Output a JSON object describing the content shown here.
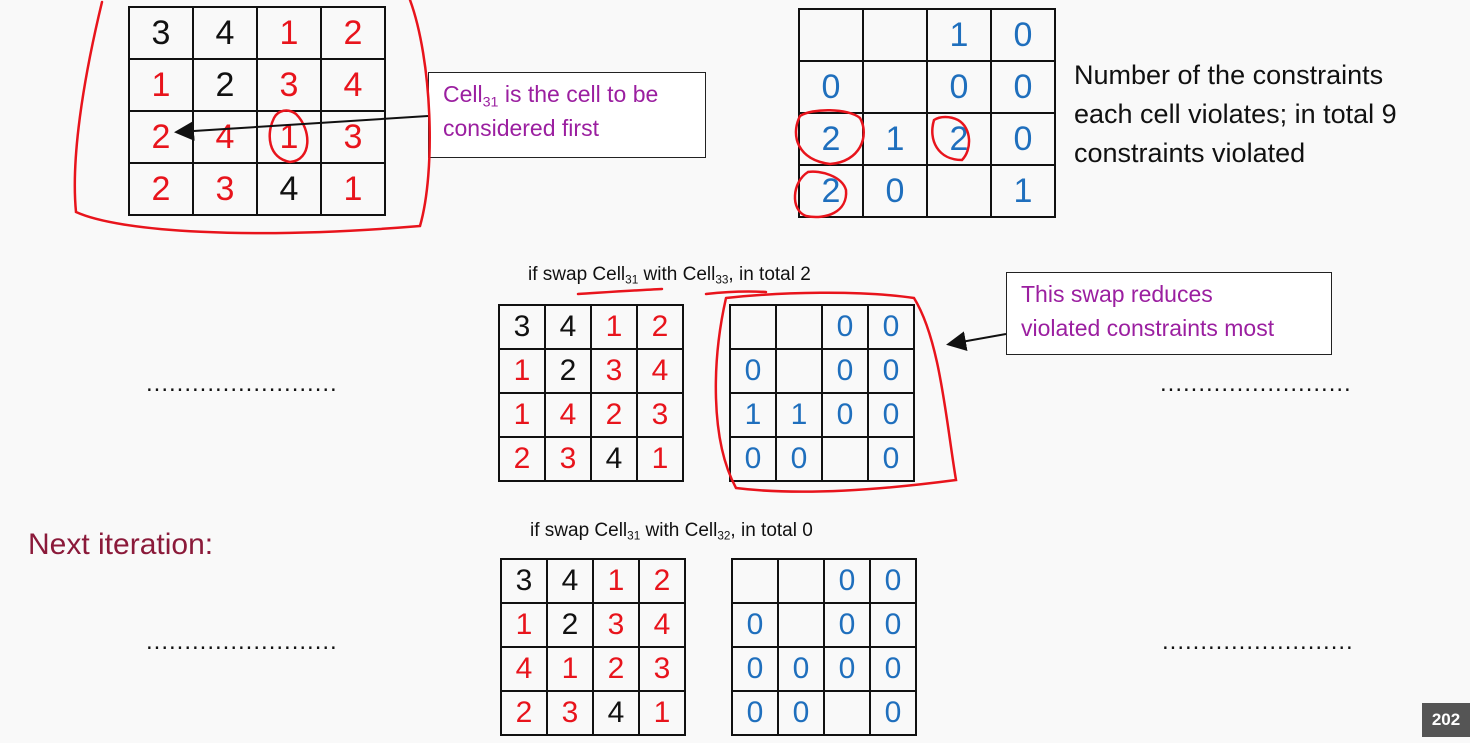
{
  "grid_top_left": {
    "rows": [
      [
        {
          "v": "3",
          "c": "blk"
        },
        {
          "v": "4",
          "c": "blk"
        },
        {
          "v": "1",
          "c": "red"
        },
        {
          "v": "2",
          "c": "red"
        }
      ],
      [
        {
          "v": "1",
          "c": "red"
        },
        {
          "v": "2",
          "c": "blk"
        },
        {
          "v": "3",
          "c": "red"
        },
        {
          "v": "4",
          "c": "red"
        }
      ],
      [
        {
          "v": "2",
          "c": "red"
        },
        {
          "v": "4",
          "c": "red"
        },
        {
          "v": "1",
          "c": "red"
        },
        {
          "v": "3",
          "c": "red"
        }
      ],
      [
        {
          "v": "2",
          "c": "red"
        },
        {
          "v": "3",
          "c": "red"
        },
        {
          "v": "4",
          "c": "blk"
        },
        {
          "v": "1",
          "c": "red"
        }
      ]
    ]
  },
  "grid_top_right": {
    "rows": [
      [
        {
          "v": "",
          "c": "blu"
        },
        {
          "v": "",
          "c": "blu"
        },
        {
          "v": "1",
          "c": "blu"
        },
        {
          "v": "0",
          "c": "blu"
        }
      ],
      [
        {
          "v": "0",
          "c": "blu"
        },
        {
          "v": "",
          "c": "blu"
        },
        {
          "v": "0",
          "c": "blu"
        },
        {
          "v": "0",
          "c": "blu"
        }
      ],
      [
        {
          "v": "2",
          "c": "blu"
        },
        {
          "v": "1",
          "c": "blu"
        },
        {
          "v": "2",
          "c": "blu"
        },
        {
          "v": "0",
          "c": "blu"
        }
      ],
      [
        {
          "v": "2",
          "c": "blu"
        },
        {
          "v": "0",
          "c": "blu"
        },
        {
          "v": "",
          "c": "blu"
        },
        {
          "v": "1",
          "c": "blu"
        }
      ]
    ]
  },
  "grid_mid_left": {
    "rows": [
      [
        {
          "v": "3",
          "c": "blk"
        },
        {
          "v": "4",
          "c": "blk"
        },
        {
          "v": "1",
          "c": "red"
        },
        {
          "v": "2",
          "c": "red"
        }
      ],
      [
        {
          "v": "1",
          "c": "red"
        },
        {
          "v": "2",
          "c": "blk"
        },
        {
          "v": "3",
          "c": "red"
        },
        {
          "v": "4",
          "c": "red"
        }
      ],
      [
        {
          "v": "1",
          "c": "red"
        },
        {
          "v": "4",
          "c": "red"
        },
        {
          "v": "2",
          "c": "red"
        },
        {
          "v": "3",
          "c": "red"
        }
      ],
      [
        {
          "v": "2",
          "c": "red"
        },
        {
          "v": "3",
          "c": "red"
        },
        {
          "v": "4",
          "c": "blk"
        },
        {
          "v": "1",
          "c": "red"
        }
      ]
    ]
  },
  "grid_mid_right": {
    "rows": [
      [
        {
          "v": "",
          "c": "blu"
        },
        {
          "v": "",
          "c": "blu"
        },
        {
          "v": "0",
          "c": "blu"
        },
        {
          "v": "0",
          "c": "blu"
        }
      ],
      [
        {
          "v": "0",
          "c": "blu"
        },
        {
          "v": "",
          "c": "blu"
        },
        {
          "v": "0",
          "c": "blu"
        },
        {
          "v": "0",
          "c": "blu"
        }
      ],
      [
        {
          "v": "1",
          "c": "blu"
        },
        {
          "v": "1",
          "c": "blu"
        },
        {
          "v": "0",
          "c": "blu"
        },
        {
          "v": "0",
          "c": "blu"
        }
      ],
      [
        {
          "v": "0",
          "c": "blu"
        },
        {
          "v": "0",
          "c": "blu"
        },
        {
          "v": "",
          "c": "blu"
        },
        {
          "v": "0",
          "c": "blu"
        }
      ]
    ]
  },
  "grid_bot_left": {
    "rows": [
      [
        {
          "v": "3",
          "c": "blk"
        },
        {
          "v": "4",
          "c": "blk"
        },
        {
          "v": "1",
          "c": "red"
        },
        {
          "v": "2",
          "c": "red"
        }
      ],
      [
        {
          "v": "1",
          "c": "red"
        },
        {
          "v": "2",
          "c": "blk"
        },
        {
          "v": "3",
          "c": "red"
        },
        {
          "v": "4",
          "c": "red"
        }
      ],
      [
        {
          "v": "4",
          "c": "red"
        },
        {
          "v": "1",
          "c": "red"
        },
        {
          "v": "2",
          "c": "red"
        },
        {
          "v": "3",
          "c": "red"
        }
      ],
      [
        {
          "v": "2",
          "c": "red"
        },
        {
          "v": "3",
          "c": "red"
        },
        {
          "v": "4",
          "c": "blk"
        },
        {
          "v": "1",
          "c": "red"
        }
      ]
    ]
  },
  "grid_bot_right": {
    "rows": [
      [
        {
          "v": "",
          "c": "blu"
        },
        {
          "v": "",
          "c": "blu"
        },
        {
          "v": "0",
          "c": "blu"
        },
        {
          "v": "0",
          "c": "blu"
        }
      ],
      [
        {
          "v": "0",
          "c": "blu"
        },
        {
          "v": "",
          "c": "blu"
        },
        {
          "v": "0",
          "c": "blu"
        },
        {
          "v": "0",
          "c": "blu"
        }
      ],
      [
        {
          "v": "0",
          "c": "blu"
        },
        {
          "v": "0",
          "c": "blu"
        },
        {
          "v": "0",
          "c": "blu"
        },
        {
          "v": "0",
          "c": "blu"
        }
      ],
      [
        {
          "v": "0",
          "c": "blu"
        },
        {
          "v": "0",
          "c": "blu"
        },
        {
          "v": "",
          "c": "blu"
        },
        {
          "v": "0",
          "c": "blu"
        }
      ]
    ]
  },
  "note_first": {
    "pre": "Cell",
    "sub": "31",
    "post": " is the cell to be",
    "line2": "considered first"
  },
  "constraints_text": {
    "line1": "Number of the constraints",
    "line2": "each cell violates; in total 9",
    "line3": "constraints violated"
  },
  "caption_mid": {
    "a": "if swap Cell",
    "s1": "31",
    "b": " with Cell",
    "s2": "33",
    "c": ", in total 2"
  },
  "caption_bot": {
    "a": "if swap Cell",
    "s1": "31",
    "b": " with Cell",
    "s2": "32",
    "c": ", in total 0"
  },
  "note_swap": {
    "line1": "This swap reduces",
    "line2": "violated constraints most"
  },
  "next_iteration": "Next iteration:",
  "dots": ".........................",
  "page_number": "202",
  "colors": {
    "red": "#e8141c",
    "blue": "#1f6fbd",
    "purple": "#9b1fa0",
    "maroon": "#8b1a3a"
  }
}
